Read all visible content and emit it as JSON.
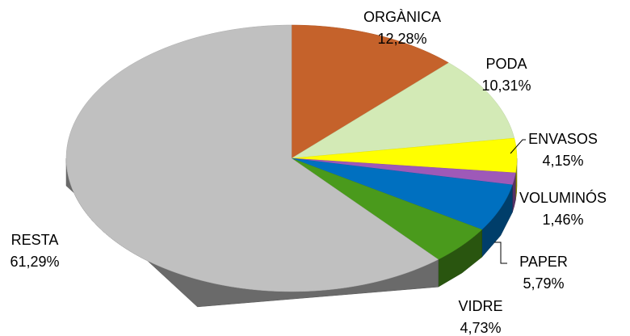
{
  "chart_data": {
    "type": "pie3d",
    "categories": [
      "ORGÀNICA",
      "PODA",
      "ENVASOS",
      "VOLUMINÓS",
      "PAPER",
      "VIDRE",
      "RESTA"
    ],
    "values": [
      12.28,
      10.31,
      4.15,
      1.46,
      5.79,
      4.73,
      61.29
    ],
    "value_labels": [
      "12,28%",
      "10,31%",
      "4,15%",
      "1,46%",
      "5,79%",
      "4,73%",
      "61,29%"
    ],
    "colors": [
      "#c5622b",
      "#d3eab6",
      "#ffff00",
      "#9e59b8",
      "#0070c0",
      "#4a9a1c",
      "#c0c0c0"
    ]
  }
}
